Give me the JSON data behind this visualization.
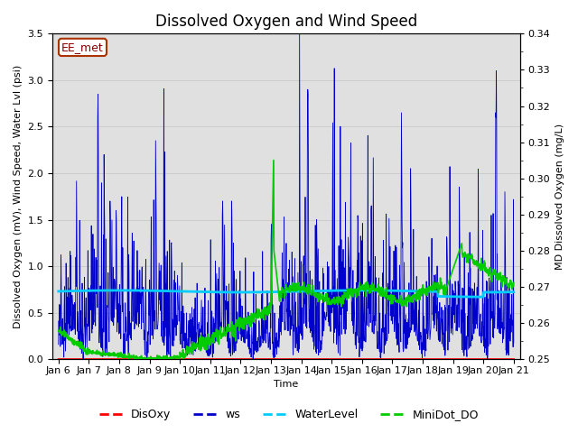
{
  "title": "Dissolved Oxygen and Wind Speed",
  "xlabel": "Time",
  "ylabel_left": "Dissolved Oxygen (mV), Wind Speed, Water Lvl (psi)",
  "ylabel_right": "MD Dissolved Oxygen (mg/L)",
  "station_label": "EE_met",
  "ylim_left": [
    0.0,
    3.5
  ],
  "ylim_right": [
    0.25,
    0.34
  ],
  "xlim_days": [
    5.8,
    21.2
  ],
  "x_tick_labels": [
    "Jan 6",
    "Jan 7",
    "Jan 8",
    "Jan 9",
    "Jan 10",
    "Jan 11",
    "Jan 12",
    "Jan 13",
    "Jan 14",
    "Jan 15",
    "Jan 16",
    "Jan 17",
    "Jan 18",
    "Jan 19",
    "Jan 20",
    "Jan 21"
  ],
  "x_tick_positions": [
    6,
    7,
    8,
    9,
    10,
    11,
    12,
    13,
    14,
    15,
    16,
    17,
    18,
    19,
    20,
    21
  ],
  "y_ticks_left": [
    0.0,
    0.5,
    1.0,
    1.5,
    2.0,
    2.5,
    3.0,
    3.5
  ],
  "y_ticks_right": [
    0.25,
    0.26,
    0.27,
    0.28,
    0.29,
    0.3,
    0.31,
    0.32,
    0.33,
    0.34
  ],
  "grid_color": "#cccccc",
  "bg_color": "#e0e0e0",
  "fig_bg": "#ffffff",
  "disoxy_color": "#ff0000",
  "ws_color": "#0000cc",
  "water_level_color": "#00ccff",
  "minidot_color": "#00cc00",
  "title_fontsize": 12,
  "label_fontsize": 8,
  "tick_fontsize": 8,
  "station_fontsize": 9,
  "station_text_color": "#880000",
  "station_edge_color": "#aa3300",
  "legend_fontsize": 9
}
